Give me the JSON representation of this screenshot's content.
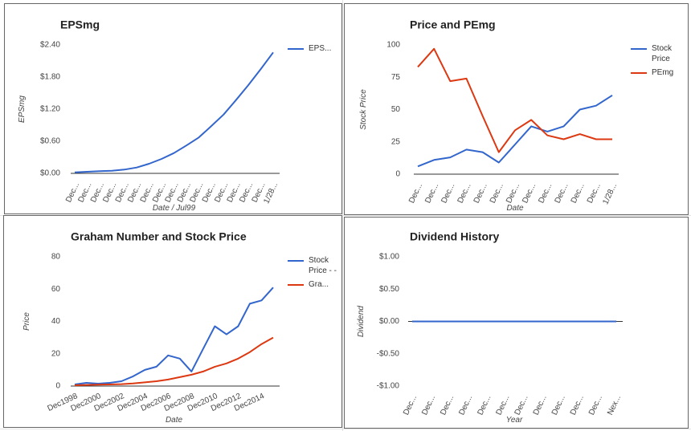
{
  "chart_data": [
    {
      "type": "line",
      "title": "EPSmg",
      "y_label": "EPSmg",
      "x_label": "Date / Jul99",
      "categories": [
        "Dec...",
        "Dec...",
        "Dec...",
        "Dec...",
        "Dec...",
        "Dec...",
        "Dec...",
        "Dec...",
        "Dec...",
        "Dec...",
        "Dec...",
        "Dec...",
        "Dec...",
        "Dec...",
        "Dec...",
        "Dec...",
        "1/28..."
      ],
      "series": [
        {
          "name": "EPS...",
          "color": "#3366cc",
          "values": [
            0.02,
            0.03,
            0.04,
            0.05,
            0.07,
            0.11,
            0.18,
            0.27,
            0.38,
            0.52,
            0.67,
            0.88,
            1.1,
            1.37,
            1.65,
            1.95,
            2.26
          ]
        }
      ],
      "ylim": [
        0,
        2.4
      ],
      "yticks": [
        {
          "value": 0,
          "label": "$0.00"
        },
        {
          "value": 0.6,
          "label": "$0.60"
        },
        {
          "value": 1.2,
          "label": "$1.20"
        },
        {
          "value": 1.8,
          "label": "$1.80"
        },
        {
          "value": 2.4,
          "label": "$2.40"
        }
      ],
      "grid": false,
      "legend": "right"
    },
    {
      "type": "line",
      "title": "Price and PEmg",
      "y_label": "Stock Price",
      "x_label": "Date",
      "categories": [
        "Dec...",
        "Dec...",
        "Dec...",
        "Dec...",
        "Dec...",
        "Dec...",
        "Dec...",
        "Dec...",
        "Dec...",
        "Dec...",
        "Dec...",
        "Dec...",
        "1/28..."
      ],
      "series": [
        {
          "name": "Stock Price",
          "color": "#3366cc",
          "values": [
            6,
            11,
            13,
            19,
            17,
            9,
            23,
            37,
            33,
            37,
            50,
            53,
            61
          ]
        },
        {
          "name": "PEmg",
          "color": "#dc3912",
          "values": [
            83,
            97,
            72,
            74,
            45,
            17,
            34,
            42,
            30,
            27,
            31,
            27,
            27
          ]
        }
      ],
      "ylim": [
        0,
        100
      ],
      "yticks": [
        0,
        25,
        50,
        75,
        100
      ],
      "grid": false,
      "legend": "right"
    },
    {
      "type": "line",
      "title": "Graham Number and Stock Price",
      "y_label": "Price",
      "x_label": "Date",
      "categories": [
        "Dec1998",
        null,
        "Dec2000",
        null,
        "Dec2002",
        null,
        "Dec2004",
        null,
        "Dec2006",
        null,
        "Dec2008",
        null,
        "Dec2010",
        null,
        "Dec2012",
        null,
        "Dec2014",
        null
      ],
      "series": [
        {
          "name": "Stock Price - -",
          "color": "#3366cc",
          "values": [
            1,
            2,
            1.5,
            2,
            3,
            6,
            10,
            12,
            19,
            17,
            9,
            23,
            37,
            32,
            37,
            51,
            53,
            61
          ]
        },
        {
          "name": "Gra...",
          "color": "#dc3912",
          "values": [
            0.5,
            0.7,
            0.9,
            1,
            1.2,
            1.6,
            2.3,
            3,
            4,
            5.5,
            7,
            9,
            12,
            14,
            17,
            21,
            26,
            30
          ]
        }
      ],
      "ylim": [
        0,
        80
      ],
      "yticks": [
        0,
        20,
        40,
        60,
        80
      ],
      "grid": false,
      "legend": "right"
    },
    {
      "type": "line",
      "title": "Dividend History",
      "y_label": "Dividend",
      "x_label": "Year",
      "categories": [
        "Dec...",
        "Dec...",
        "Dec...",
        "Dec...",
        "Dec...",
        "Dec...",
        "Dec...",
        "Dec...",
        "Dec...",
        "Dec...",
        "Dec...",
        "Nex..."
      ],
      "series": [
        {
          "name": "Dividend",
          "color": "#3366cc",
          "values": [
            0,
            0,
            0,
            0,
            0,
            0,
            0,
            0,
            0,
            0,
            0,
            0
          ]
        }
      ],
      "ylim": [
        -1,
        1
      ],
      "yticks": [
        {
          "value": -1,
          "label": "-$1.00"
        },
        {
          "value": -0.5,
          "label": "-$0.50"
        },
        {
          "value": 0,
          "label": "$0.00"
        },
        {
          "value": 0.5,
          "label": "$0.50"
        },
        {
          "value": 1,
          "label": "$1.00"
        }
      ],
      "grid": false,
      "legend": "none"
    }
  ]
}
